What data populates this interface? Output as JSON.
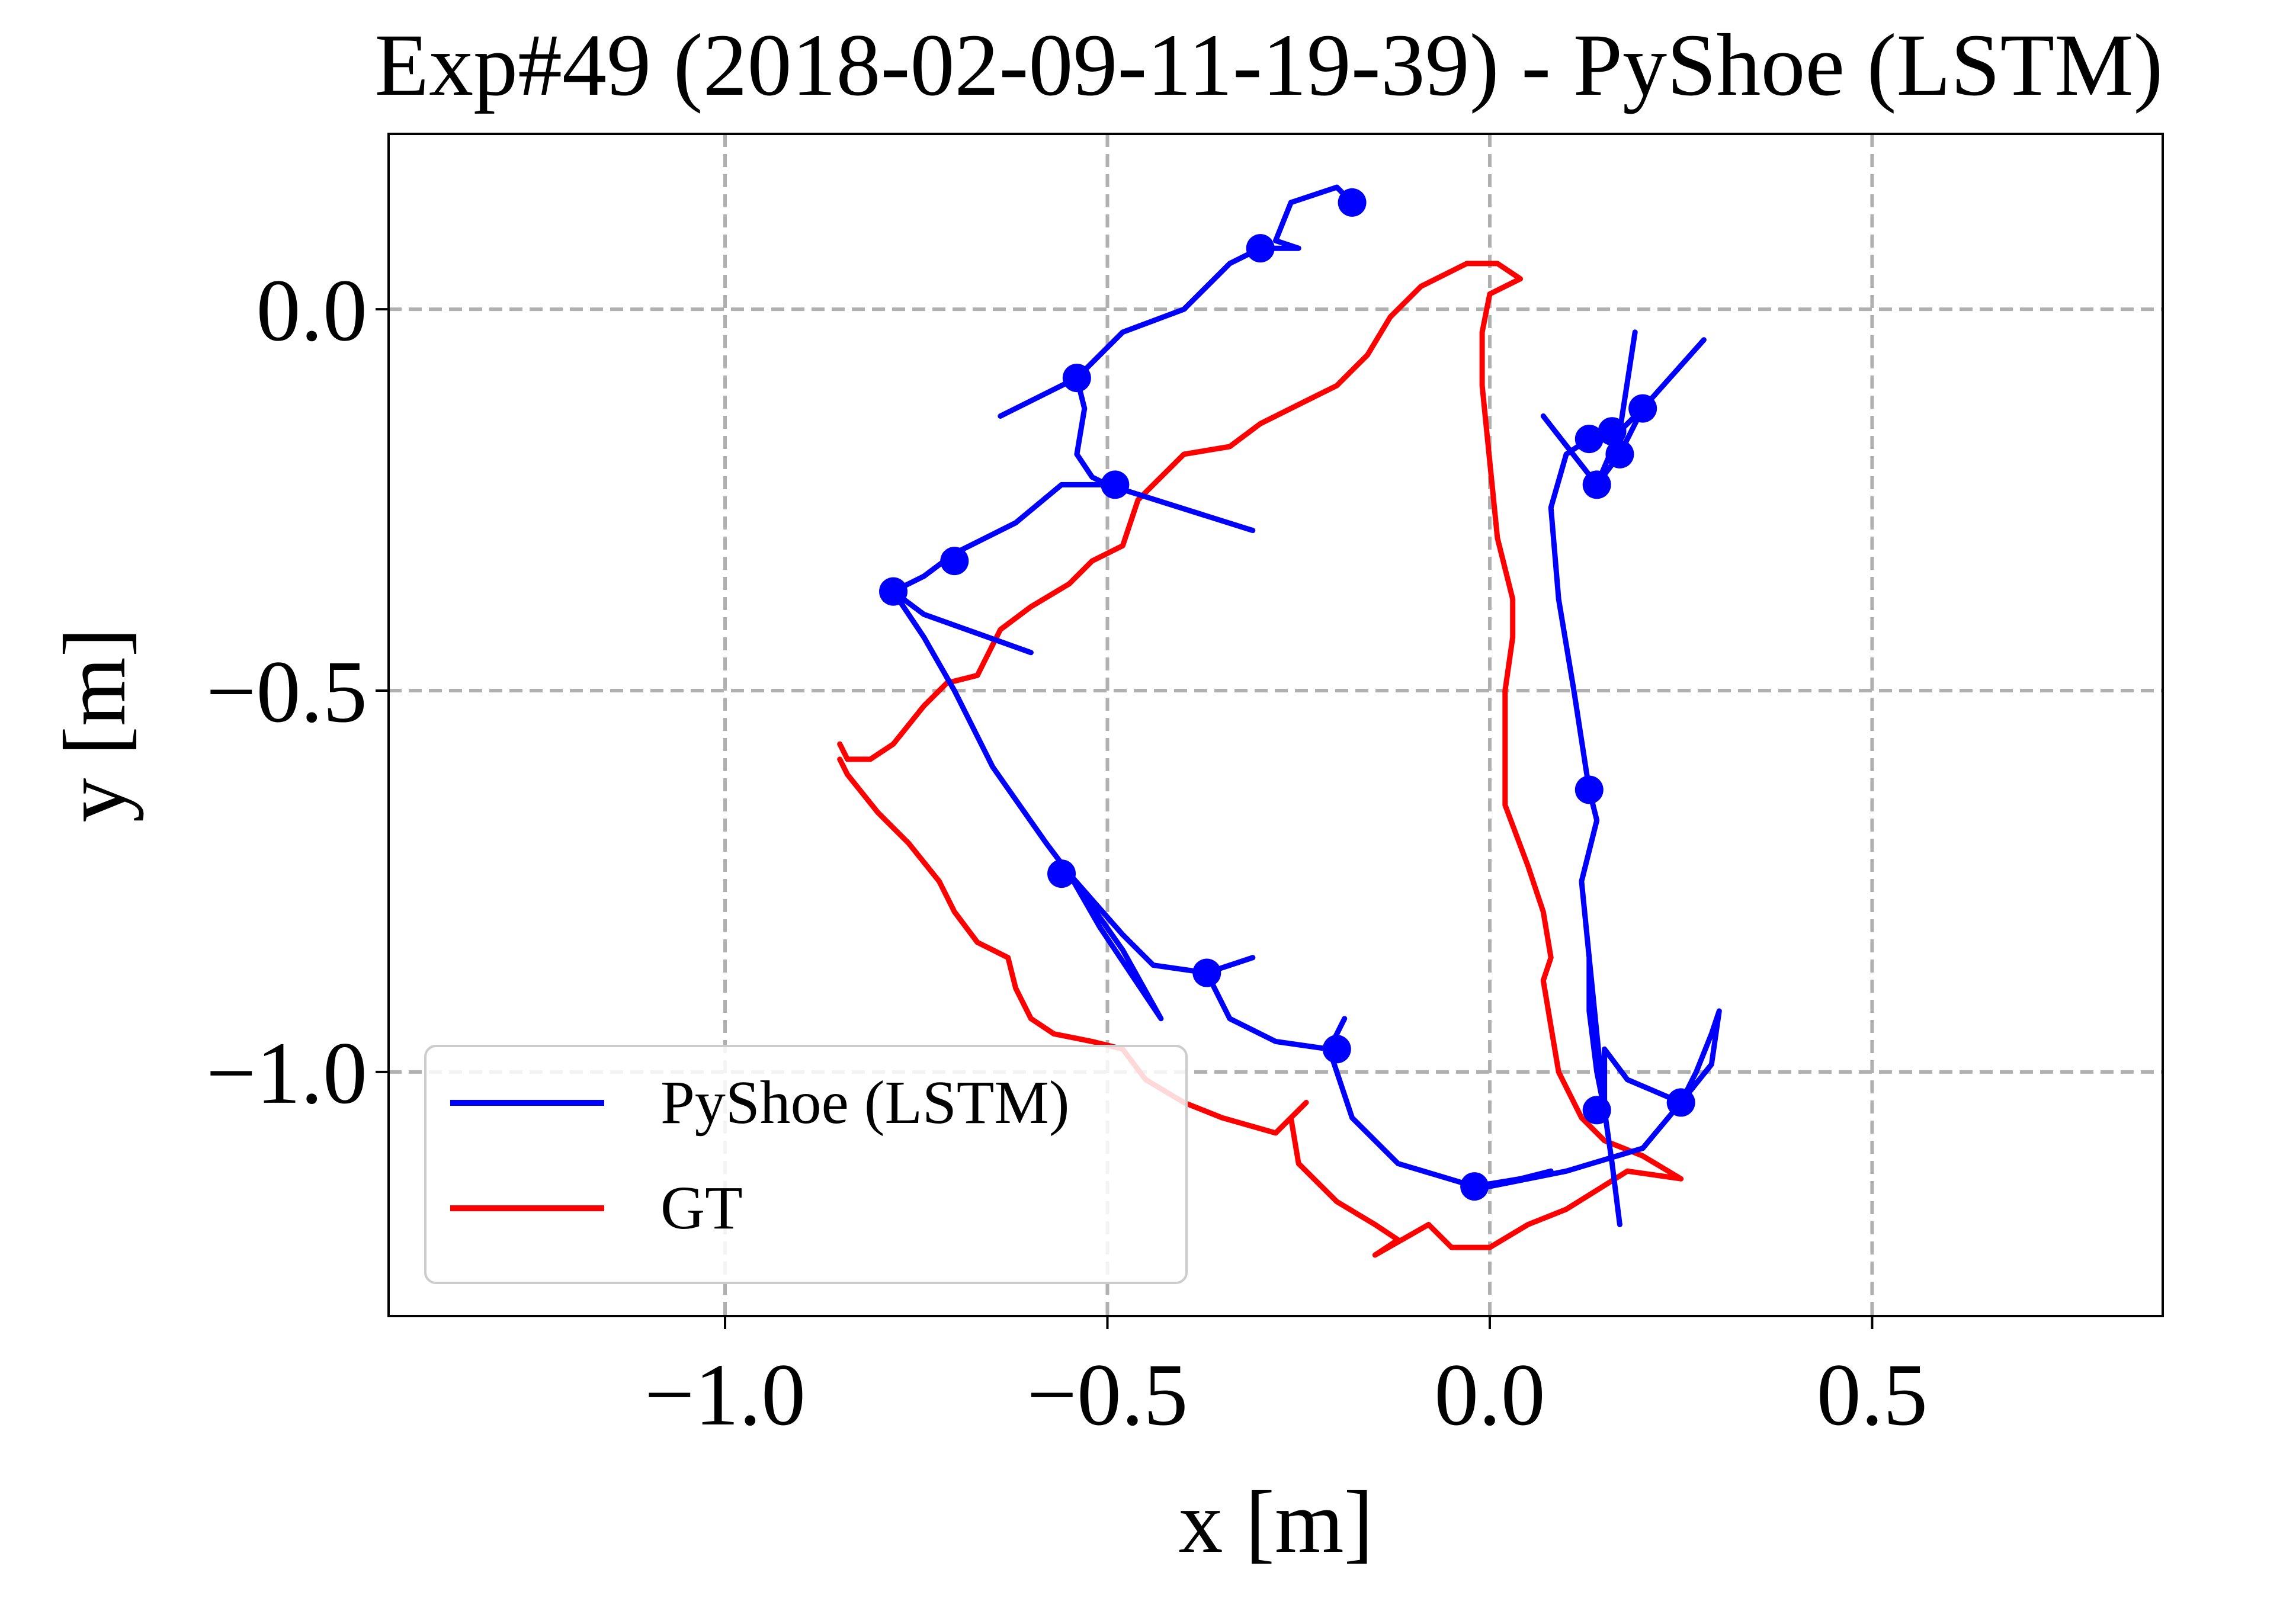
{
  "chart_data": {
    "type": "line",
    "title": "Exp#49 (2018-02-09-11-19-39) - PyShoe (LSTM)",
    "xlabel": "x [m]",
    "ylabel": "y [m]",
    "xlim": [
      -1.44,
      0.88
    ],
    "ylim": [
      -1.32,
      0.23
    ],
    "xticks": [
      -1.0,
      -0.5,
      0.0,
      0.5
    ],
    "xtick_labels": [
      "−1.0",
      "−0.5",
      "0.0",
      "0.5"
    ],
    "yticks": [
      0.0,
      -0.5,
      -1.0
    ],
    "ytick_labels": [
      "0.0",
      "−0.5",
      "−1.0"
    ],
    "grid": true,
    "legend_position": "lower-left",
    "series": [
      {
        "name": "PyShoe (LSTM)",
        "color": "#0000ff",
        "points": [
          [
            0.17,
            -1.2
          ],
          [
            0.16,
            -1.12
          ],
          [
            0.15,
            -1.05
          ],
          [
            0.14,
            -0.95
          ],
          [
            0.13,
            -0.85
          ],
          [
            0.12,
            -0.75
          ],
          [
            0.14,
            -0.67
          ],
          [
            0.13,
            -0.63
          ],
          [
            0.11,
            -0.5
          ],
          [
            0.09,
            -0.38
          ],
          [
            0.08,
            -0.26
          ],
          [
            0.1,
            -0.19
          ],
          [
            0.13,
            -0.17
          ],
          [
            0.17,
            -0.16
          ],
          [
            0.2,
            -0.13
          ],
          [
            0.28,
            -0.04
          ],
          [
            0.2,
            -0.13
          ],
          [
            0.17,
            -0.19
          ],
          [
            0.14,
            -0.23
          ],
          [
            0.07,
            -0.14
          ],
          [
            0.14,
            -0.23
          ],
          [
            0.17,
            -0.16
          ],
          [
            0.19,
            -0.03
          ],
          [
            0.17,
            -0.16
          ],
          [
            0.13,
            -0.17
          ],
          [
            0.1,
            -0.19
          ],
          [
            0.08,
            -0.26
          ],
          [
            0.09,
            -0.38
          ],
          [
            0.11,
            -0.5
          ],
          [
            0.13,
            -0.63
          ],
          [
            0.14,
            -0.67
          ],
          [
            0.12,
            -0.75
          ],
          [
            0.13,
            -0.85
          ],
          [
            0.13,
            -0.92
          ],
          [
            0.14,
            -1.0
          ],
          [
            0.15,
            -1.05
          ],
          [
            0.15,
            -0.97
          ],
          [
            0.18,
            -1.01
          ],
          [
            0.25,
            -1.04
          ],
          [
            0.29,
            -0.99
          ],
          [
            0.3,
            -0.92
          ],
          [
            0.29,
            -0.95
          ],
          [
            0.27,
            -1.0
          ],
          [
            0.25,
            -1.04
          ],
          [
            0.2,
            -1.1
          ],
          [
            0.1,
            -1.13
          ],
          [
            0.0,
            -1.15
          ],
          [
            -0.02,
            -1.15
          ],
          [
            0.04,
            -1.14
          ],
          [
            0.08,
            -1.13
          ],
          [
            0.04,
            -1.14
          ],
          [
            -0.02,
            -1.15
          ],
          [
            -0.12,
            -1.12
          ],
          [
            -0.18,
            -1.06
          ],
          [
            -0.21,
            -0.97
          ],
          [
            -0.19,
            -0.93
          ],
          [
            -0.21,
            -0.97
          ],
          [
            -0.28,
            -0.96
          ],
          [
            -0.34,
            -0.93
          ],
          [
            -0.37,
            -0.87
          ],
          [
            -0.31,
            -0.85
          ],
          [
            -0.37,
            -0.87
          ],
          [
            -0.44,
            -0.86
          ],
          [
            -0.48,
            -0.82
          ],
          [
            -0.55,
            -0.74
          ],
          [
            -0.51,
            -0.81
          ],
          [
            -0.43,
            -0.93
          ],
          [
            -0.48,
            -0.84
          ],
          [
            -0.55,
            -0.74
          ],
          [
            -0.58,
            -0.7
          ],
          [
            -0.65,
            -0.6
          ],
          [
            -0.7,
            -0.5
          ],
          [
            -0.74,
            -0.43
          ],
          [
            -0.78,
            -0.37
          ],
          [
            -0.74,
            -0.4
          ],
          [
            -0.6,
            -0.45
          ],
          [
            -0.74,
            -0.4
          ],
          [
            -0.78,
            -0.37
          ],
          [
            -0.74,
            -0.35
          ],
          [
            -0.7,
            -0.32
          ],
          [
            -0.62,
            -0.28
          ],
          [
            -0.56,
            -0.23
          ],
          [
            -0.5,
            -0.23
          ],
          [
            -0.31,
            -0.29
          ],
          [
            -0.5,
            -0.23
          ],
          [
            -0.52,
            -0.22
          ],
          [
            -0.54,
            -0.19
          ],
          [
            -0.53,
            -0.13
          ],
          [
            -0.54,
            -0.09
          ],
          [
            -0.64,
            -0.14
          ],
          [
            -0.54,
            -0.09
          ],
          [
            -0.48,
            -0.03
          ],
          [
            -0.4,
            0.0
          ],
          [
            -0.34,
            0.06
          ],
          [
            -0.3,
            0.08
          ],
          [
            -0.25,
            0.08
          ],
          [
            -0.28,
            0.09
          ],
          [
            -0.26,
            0.14
          ],
          [
            -0.2,
            0.16
          ],
          [
            -0.18,
            0.14
          ]
        ],
        "markers": [
          [
            -0.18,
            0.14
          ],
          [
            -0.3,
            0.08
          ],
          [
            -0.54,
            -0.09
          ],
          [
            -0.49,
            -0.23
          ],
          [
            -0.7,
            -0.33
          ],
          [
            -0.78,
            -0.37
          ],
          [
            0.13,
            -0.63
          ],
          [
            0.13,
            -0.17
          ],
          [
            0.16,
            -0.16
          ],
          [
            0.17,
            -0.19
          ],
          [
            0.2,
            -0.13
          ],
          [
            0.14,
            -0.23
          ],
          [
            -0.56,
            -0.74
          ],
          [
            -0.37,
            -0.87
          ],
          [
            -0.2,
            -0.97
          ],
          [
            0.14,
            -1.05
          ],
          [
            0.25,
            -1.04
          ],
          [
            -0.02,
            -1.15
          ]
        ]
      },
      {
        "name": "GT",
        "color": "#ff0000",
        "points": [
          [
            -0.85,
            -0.57
          ],
          [
            -0.84,
            -0.59
          ],
          [
            -0.81,
            -0.59
          ],
          [
            -0.78,
            -0.57
          ],
          [
            -0.74,
            -0.52
          ],
          [
            -0.71,
            -0.49
          ],
          [
            -0.67,
            -0.48
          ],
          [
            -0.66,
            -0.46
          ],
          [
            -0.64,
            -0.42
          ],
          [
            -0.6,
            -0.39
          ],
          [
            -0.55,
            -0.36
          ],
          [
            -0.52,
            -0.33
          ],
          [
            -0.48,
            -0.31
          ],
          [
            -0.46,
            -0.25
          ],
          [
            -0.4,
            -0.19
          ],
          [
            -0.34,
            -0.18
          ],
          [
            -0.3,
            -0.15
          ],
          [
            -0.24,
            -0.12
          ],
          [
            -0.2,
            -0.1
          ],
          [
            -0.16,
            -0.06
          ],
          [
            -0.13,
            -0.01
          ],
          [
            -0.09,
            0.03
          ],
          [
            -0.03,
            0.06
          ],
          [
            0.01,
            0.06
          ],
          [
            0.04,
            0.04
          ],
          [
            0.0,
            0.02
          ],
          [
            -0.01,
            -0.03
          ],
          [
            -0.01,
            -0.1
          ],
          [
            0.0,
            -0.2
          ],
          [
            0.01,
            -0.3
          ],
          [
            0.03,
            -0.38
          ],
          [
            0.03,
            -0.43
          ],
          [
            0.02,
            -0.5
          ],
          [
            0.02,
            -0.6
          ],
          [
            0.02,
            -0.65
          ],
          [
            0.05,
            -0.73
          ],
          [
            0.07,
            -0.79
          ],
          [
            0.08,
            -0.85
          ],
          [
            0.07,
            -0.88
          ],
          [
            0.08,
            -0.94
          ],
          [
            0.09,
            -1.0
          ],
          [
            0.12,
            -1.06
          ],
          [
            0.15,
            -1.09
          ],
          [
            0.2,
            -1.11
          ],
          [
            0.25,
            -1.14
          ],
          [
            0.18,
            -1.13
          ],
          [
            0.1,
            -1.18
          ],
          [
            0.05,
            -1.2
          ],
          [
            0.0,
            -1.23
          ],
          [
            -0.05,
            -1.23
          ],
          [
            -0.08,
            -1.2
          ],
          [
            -0.15,
            -1.24
          ],
          [
            -0.12,
            -1.22
          ],
          [
            -0.15,
            -1.2
          ],
          [
            -0.2,
            -1.17
          ],
          [
            -0.25,
            -1.12
          ],
          [
            -0.26,
            -1.06
          ],
          [
            -0.24,
            -1.04
          ],
          [
            -0.28,
            -1.08
          ],
          [
            -0.35,
            -1.06
          ],
          [
            -0.4,
            -1.04
          ],
          [
            -0.45,
            -1.01
          ],
          [
            -0.48,
            -0.97
          ],
          [
            -0.52,
            -0.96
          ],
          [
            -0.57,
            -0.95
          ],
          [
            -0.6,
            -0.93
          ],
          [
            -0.62,
            -0.89
          ],
          [
            -0.63,
            -0.85
          ],
          [
            -0.67,
            -0.83
          ],
          [
            -0.7,
            -0.79
          ],
          [
            -0.72,
            -0.75
          ],
          [
            -0.76,
            -0.7
          ],
          [
            -0.8,
            -0.66
          ],
          [
            -0.84,
            -0.61
          ],
          [
            -0.85,
            -0.59
          ]
        ]
      }
    ]
  }
}
